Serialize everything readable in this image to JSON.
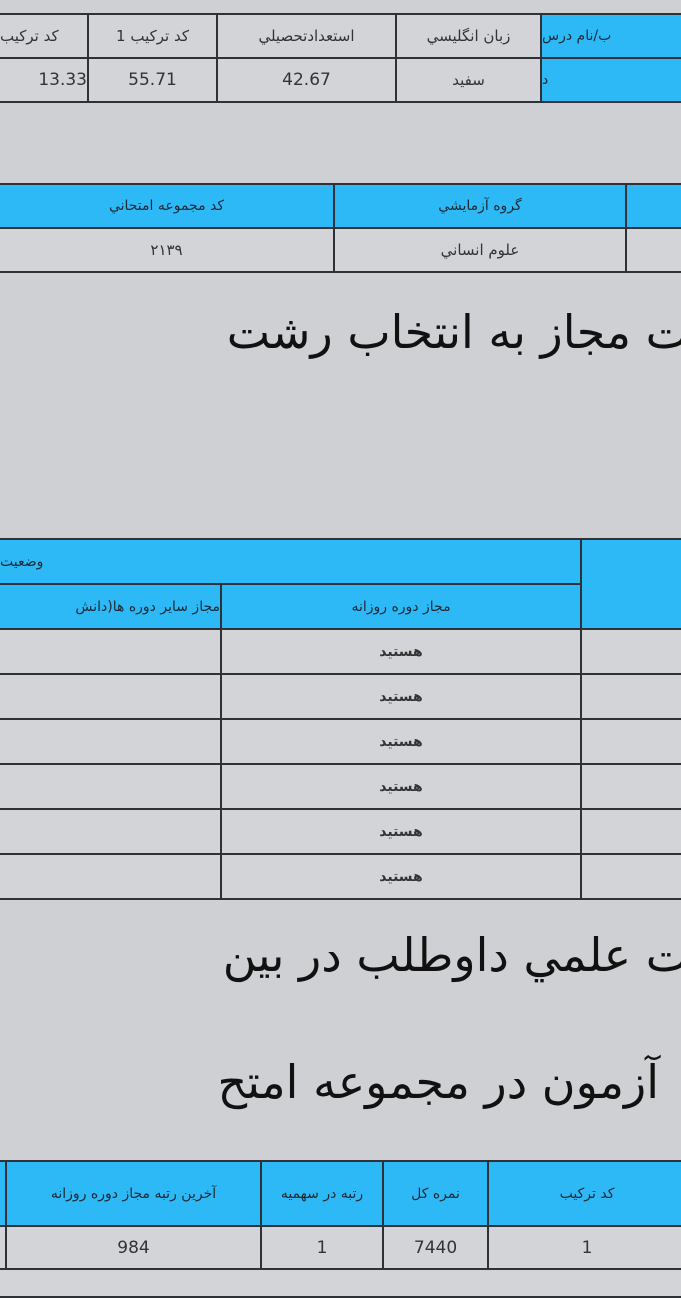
{
  "table1": {
    "headers": [
      "كد تركيب",
      "كد تركيب 1",
      "استعدادتحصيلي",
      "زبان انگليسي",
      "ب/نام درس"
    ],
    "values": [
      "13.33",
      "55.71",
      "42.67",
      "سفيد",
      "د"
    ]
  },
  "table2": {
    "headers": [
      "كد مجموعه امتحاني",
      "گروه آزمايشي",
      ""
    ],
    "values": [
      "۲۱۳۹",
      "علوم انساني",
      ""
    ]
  },
  "heading1": "ت مجاز به انتخاب رشت",
  "table3": {
    "group_header": "وضعيت",
    "headers": [
      "مجاز ساير دوره ها(دانش",
      "مجاز دوره روزانه"
    ],
    "rows": [
      "هستيد",
      "هستيد",
      "هستيد",
      "هستيد",
      "هستيد",
      "هستيد"
    ]
  },
  "heading2": "ت علمي داوطلب در بين",
  "heading3": "آزمون در مجموعه امتح",
  "table4": {
    "headers": [
      "آخرين رتبه مجاز دوره روزانه",
      "رتبه در سهميه",
      "نمره كل",
      "كد تركيب"
    ],
    "values": [
      "984",
      "1",
      "7440",
      "1"
    ]
  },
  "colors": {
    "header_blue": "#2cb9f6",
    "background": "#cfd0d4"
  }
}
